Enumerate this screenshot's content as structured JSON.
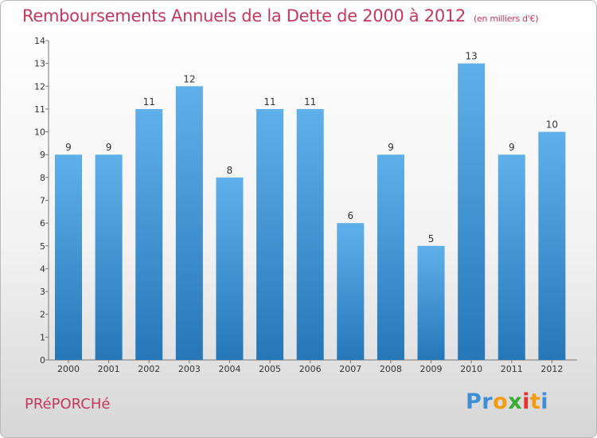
{
  "header": {
    "title": "Remboursements Annuels de la Dette de 2000 à 2012",
    "subtitle": "(en milliers d'€)"
  },
  "footer": {
    "commune": "PRéPORCHé",
    "brand": {
      "letters": [
        "P",
        "r",
        "o",
        "x",
        "i",
        "t",
        "i"
      ],
      "colors": [
        "#3f8fd6",
        "#3f8fd6",
        "#f39c12",
        "#3aaa35",
        "#e5322d",
        "#f39c12",
        "#3f8fd6"
      ]
    }
  },
  "colors": {
    "accent": "#c8365e",
    "bar_light": "#5fb0ea",
    "bar_dark": "#2677b8"
  },
  "chart_data": {
    "type": "bar",
    "categories": [
      "2000",
      "2001",
      "2002",
      "2003",
      "2004",
      "2005",
      "2006",
      "2007",
      "2008",
      "2009",
      "2010",
      "2011",
      "2012"
    ],
    "values": [
      9,
      9,
      11,
      12,
      8,
      11,
      11,
      6,
      9,
      5,
      13,
      9,
      10
    ],
    "data_labels": [
      "9",
      "9",
      "11",
      "12",
      "8",
      "11",
      "11",
      "6",
      "9",
      "5",
      "13",
      "9",
      "10"
    ],
    "y_ticks": [
      "0",
      "1",
      "2",
      "3",
      "4",
      "5",
      "6",
      "7",
      "8",
      "9",
      "10",
      "11",
      "12",
      "13",
      "14"
    ],
    "ylim": [
      0,
      14
    ],
    "grid": false
  }
}
